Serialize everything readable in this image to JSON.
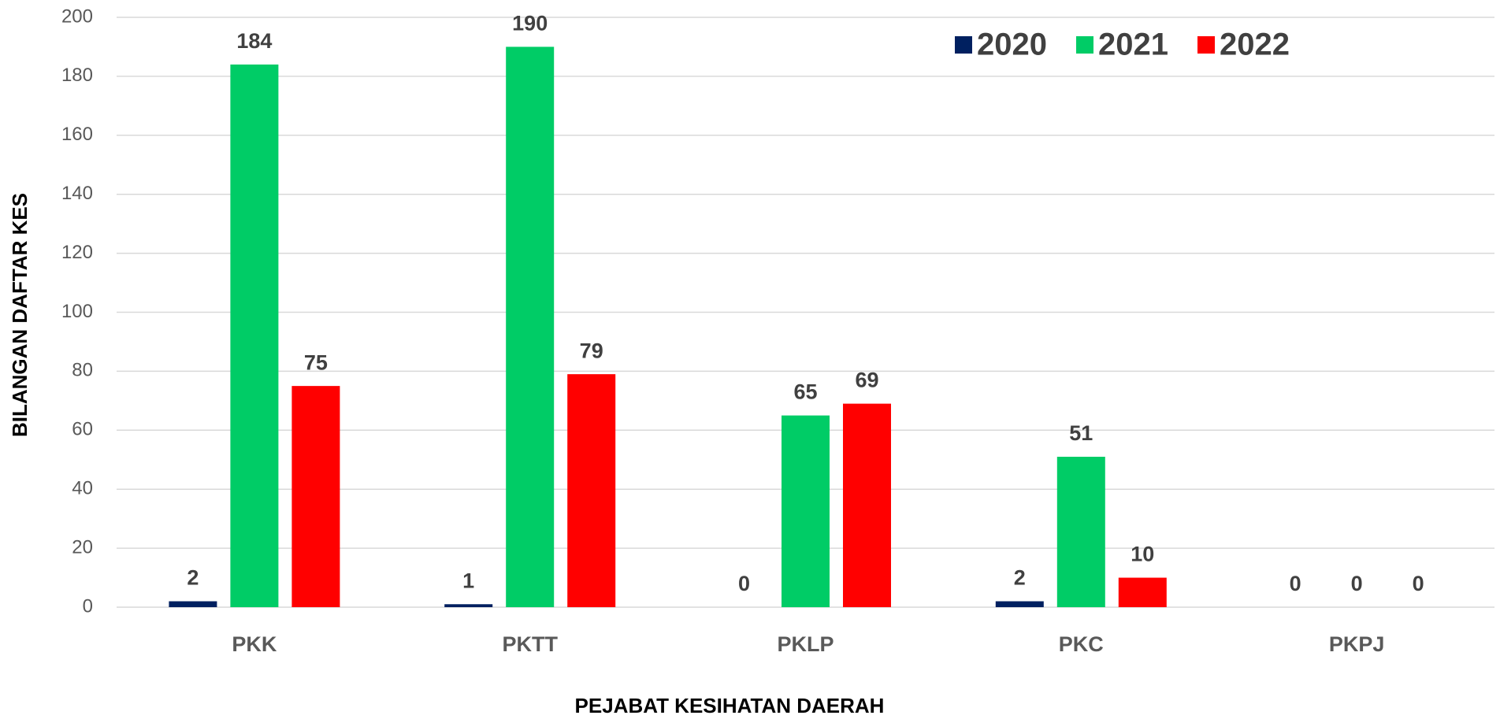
{
  "chart_data": {
    "type": "bar",
    "x_label": "PEJABAT KESIHATAN DAERAH",
    "y_label": "BILANGAN DAFTAR KES",
    "categories": [
      "PKK",
      "PKTT",
      "PKLP",
      "PKC",
      "PKPJ"
    ],
    "series": [
      {
        "name": "2020",
        "color": "#002060",
        "values": [
          2,
          1,
          0,
          2,
          0
        ]
      },
      {
        "name": "2021",
        "color": "#00cc66",
        "values": [
          184,
          190,
          65,
          51,
          0
        ]
      },
      {
        "name": "2022",
        "color": "#ff0000",
        "values": [
          75,
          79,
          69,
          10,
          0
        ]
      }
    ],
    "ylim": [
      0,
      200
    ],
    "yticks": [
      0,
      20,
      40,
      60,
      80,
      100,
      120,
      140,
      160,
      180,
      200
    ],
    "grid": true,
    "legend": "top-right",
    "data_labels": true
  }
}
